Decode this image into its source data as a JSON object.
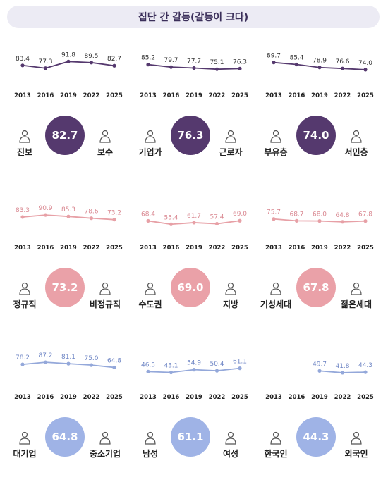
{
  "title": "집단 간 갈등(갈등이 크다)",
  "colors": {
    "purple": "#55396e",
    "pink": "#eaa1a8",
    "blue": "#9fb3e6",
    "line_purple": "#55396e",
    "line_pink": "#e7a0a6",
    "line_blue": "#94a8da"
  },
  "chart_data": [
    {
      "type": "line",
      "x": [
        "2013",
        "2016",
        "2019",
        "2022",
        "2025"
      ],
      "values": [
        83.4,
        77.3,
        91.8,
        89.5,
        82.7
      ],
      "center": "82.7",
      "left": "진보",
      "right": "보수",
      "left_icon": "progressive-icon",
      "right_icon": "conservative-icon",
      "color": "purple",
      "ylim": [
        60,
        100
      ]
    },
    {
      "type": "line",
      "x": [
        "2013",
        "2016",
        "2019",
        "2022",
        "2025"
      ],
      "values": [
        85.2,
        79.7,
        77.7,
        75.1,
        76.3
      ],
      "center": "76.3",
      "left": "기업가",
      "right": "근로자",
      "left_icon": "businessman-icon",
      "right_icon": "worker-icon",
      "color": "purple",
      "ylim": [
        60,
        100
      ]
    },
    {
      "type": "line",
      "x": [
        "2013",
        "2016",
        "2019",
        "2022",
        "2025"
      ],
      "values": [
        89.7,
        85.4,
        78.9,
        76.6,
        74.0
      ],
      "center": "74.0",
      "left": "부유층",
      "right": "서민층",
      "left_icon": "wealthy-icon",
      "right_icon": "working-class-icon",
      "color": "purple",
      "ylim": [
        60,
        100
      ]
    },
    {
      "type": "line",
      "x": [
        "2013",
        "2016",
        "2019",
        "2022",
        "2025"
      ],
      "values": [
        83.3,
        90.9,
        85.3,
        78.6,
        73.2
      ],
      "center": "73.2",
      "left": "정규직",
      "right": "비정규직",
      "left_icon": "regular-worker-icon",
      "right_icon": "irregular-worker-icon",
      "color": "pink",
      "ylim": [
        40,
        110
      ]
    },
    {
      "type": "line",
      "x": [
        "2013",
        "2016",
        "2019",
        "2022",
        "2025"
      ],
      "values": [
        68.4,
        55.4,
        61.7,
        57.4,
        69.0
      ],
      "center": "69.0",
      "left": "수도권",
      "right": "지방",
      "left_icon": "city-buildings-icon",
      "right_icon": "rural-house-icon",
      "color": "pink",
      "ylim": [
        40,
        110
      ]
    },
    {
      "type": "line",
      "x": [
        "2013",
        "2016",
        "2019",
        "2022",
        "2025"
      ],
      "values": [
        75.7,
        68.7,
        68.0,
        64.8,
        67.8
      ],
      "center": "67.8",
      "left": "기성세대",
      "right": "젊은세대",
      "left_icon": "older-person-icon",
      "right_icon": "young-person-icon",
      "color": "pink",
      "ylim": [
        40,
        110
      ]
    },
    {
      "type": "line",
      "x": [
        "2013",
        "2016",
        "2019",
        "2022",
        "2025"
      ],
      "values": [
        78.2,
        87.2,
        81.1,
        75.0,
        64.8
      ],
      "center": "64.8",
      "left": "대기업",
      "right": "중소기업",
      "left_icon": "large-company-icon",
      "right_icon": "small-company-icon",
      "color": "blue",
      "ylim": [
        20,
        100
      ]
    },
    {
      "type": "line",
      "x": [
        "2013",
        "2016",
        "2019",
        "2022",
        "2025"
      ],
      "values": [
        46.5,
        43.1,
        54.9,
        50.4,
        61.1
      ],
      "center": "61.1",
      "left": "남성",
      "right": "여성",
      "left_icon": "man-icon",
      "right_icon": "woman-icon",
      "color": "blue",
      "ylim": [
        20,
        100
      ]
    },
    {
      "type": "line",
      "x": [
        "2013",
        "2016",
        "2019",
        "2022",
        "2025"
      ],
      "values": [
        null,
        null,
        49.7,
        41.8,
        44.3
      ],
      "center": "44.3",
      "left": "한국인",
      "right": "외국인",
      "left_icon": "korean-person-icon",
      "right_icon": "foreigner-icon",
      "color": "blue",
      "ylim": [
        20,
        100
      ]
    }
  ]
}
